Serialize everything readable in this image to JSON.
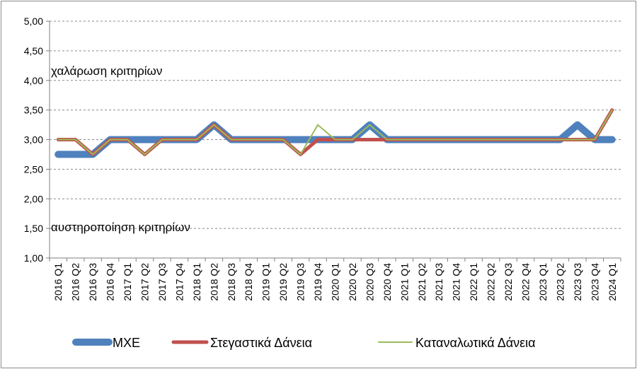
{
  "chart_data": {
    "type": "line",
    "title": "",
    "xlabel": "",
    "ylabel": "",
    "ylim": [
      1.0,
      5.0
    ],
    "y_ticks": [
      "1,00",
      "1,50",
      "2,00",
      "2,50",
      "3,00",
      "3,50",
      "4,00",
      "4,50",
      "5,00"
    ],
    "grid": "horizontal dashed",
    "legend_position": "bottom",
    "categories": [
      "2016 Q1",
      "2016 Q2",
      "2016 Q3",
      "2016 Q4",
      "2017 Q1",
      "2017 Q2",
      "2017 Q3",
      "2017 Q4",
      "2018 Q1",
      "2018 Q2",
      "2018 Q3",
      "2018 Q4",
      "2019 Q1",
      "2019 Q2",
      "2019 Q3",
      "2019 Q4",
      "2020 Q1",
      "2020 Q2",
      "2020 Q3",
      "2020 Q4",
      "2021 Q1",
      "2021 Q2",
      "2021 Q3",
      "2021 Q4",
      "2022 Q1",
      "2022 Q2",
      "2022 Q3",
      "2022 Q4",
      "2023 Q1",
      "2023 Q2",
      "2023 Q3",
      "2023 Q4",
      "2024 Q1"
    ],
    "series": [
      {
        "name": "ΜΧΕ",
        "color": "#4f81bd",
        "values": [
          2.75,
          2.75,
          2.75,
          3.0,
          3.0,
          3.0,
          3.0,
          3.0,
          3.0,
          3.25,
          3.0,
          3.0,
          3.0,
          3.0,
          3.0,
          3.0,
          3.0,
          3.0,
          3.25,
          3.0,
          3.0,
          3.0,
          3.0,
          3.0,
          3.0,
          3.0,
          3.0,
          3.0,
          3.0,
          3.0,
          3.25,
          3.0,
          3.0
        ]
      },
      {
        "name": "Στεγαστικά Δάνεια",
        "color": "#c0504d",
        "values": [
          3.0,
          3.0,
          2.75,
          3.0,
          3.0,
          2.75,
          3.0,
          3.0,
          3.0,
          3.25,
          3.0,
          3.0,
          3.0,
          3.0,
          2.75,
          3.0,
          3.0,
          3.0,
          3.0,
          3.0,
          3.0,
          3.0,
          3.0,
          3.0,
          3.0,
          3.0,
          3.0,
          3.0,
          3.0,
          3.0,
          3.0,
          3.0,
          3.5
        ]
      },
      {
        "name": "Καταναλωτικά Δάνεια",
        "color": "#9bbb59",
        "values": [
          3.0,
          3.0,
          2.75,
          3.0,
          3.0,
          2.75,
          3.0,
          3.0,
          3.0,
          3.25,
          3.0,
          3.0,
          3.0,
          3.0,
          2.75,
          3.25,
          3.0,
          3.0,
          3.25,
          3.0,
          3.0,
          3.0,
          3.0,
          3.0,
          3.0,
          3.0,
          3.0,
          3.0,
          3.0,
          3.0,
          3.0,
          3.0,
          3.5
        ]
      }
    ],
    "annotations": [
      "χαλάρωση κριτηρίων",
      "αυστηροποίηση κριτηρίων"
    ]
  }
}
